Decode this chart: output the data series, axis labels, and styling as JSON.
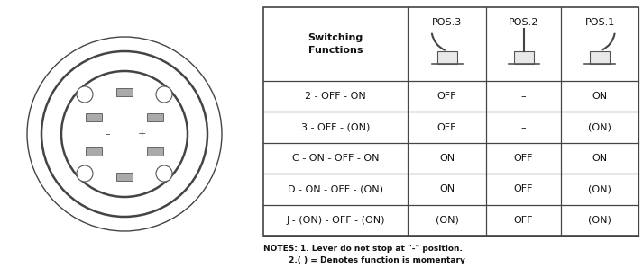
{
  "bg_color": "#ffffff",
  "rows": [
    [
      "2 - OFF - ON",
      "OFF",
      "–",
      "ON"
    ],
    [
      "3 - OFF - (ON)",
      "OFF",
      "–",
      "(ON)"
    ],
    [
      "C - ON - OFF - ON",
      "ON",
      "OFF",
      "ON"
    ],
    [
      "D - ON - OFF - (ON)",
      "ON",
      "OFF",
      "(ON)"
    ],
    [
      "J - (ON) - OFF - (ON)",
      "(ON)",
      "OFF",
      "(ON)"
    ]
  ],
  "note1": "NOTES: 1. Lever do not stop at \"-\" position.",
  "note2": "         2.( ) = Denotes function is momentary",
  "pos_labels": [
    "POS.3",
    "POS.2",
    "POS.1"
  ],
  "switch_label": "Switching\nFunctions",
  "line_color": "#444444"
}
